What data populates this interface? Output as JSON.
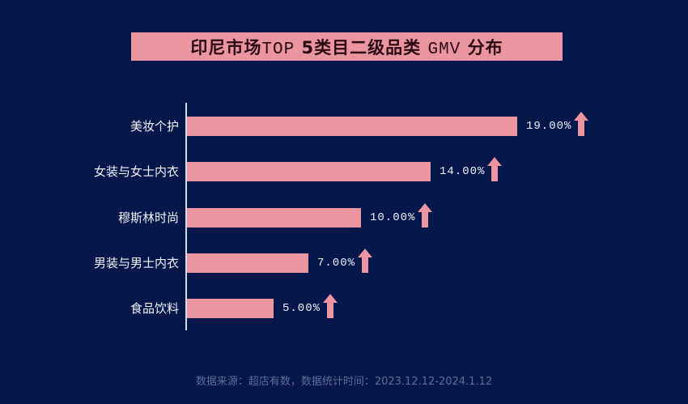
{
  "title": {
    "cn_prefix": "印尼市场",
    "mono_a": "TOP",
    "mid": "5类目二级品类",
    "mono_b": "GMV",
    "cn_suffix": "分布"
  },
  "footer": "数据来源：超店有数，数据统计时间：2023.12.12-2024.1.12",
  "colors": {
    "background": "#03164a",
    "bar": "#ec95a0",
    "title_bg": "#ea95a0",
    "label": "#f1f3f8",
    "footer": "#5d6d98"
  },
  "chart_data": {
    "type": "bar",
    "orientation": "horizontal",
    "title": "印尼市场TOP 5类目二级品类 GMV 分布",
    "categories": [
      "美妆个护",
      "女装与女士内衣",
      "穆斯林时尚",
      "男装与男士内衣",
      "食品饮料"
    ],
    "values": [
      19.0,
      14.0,
      10.0,
      7.0,
      5.0
    ],
    "value_labels": [
      "19.00%",
      "14.00%",
      "10.00%",
      "7.00%",
      "5.00%"
    ],
    "trend": [
      "up",
      "up",
      "up",
      "up",
      "up"
    ],
    "xlabel": "",
    "ylabel": "",
    "grid": false,
    "legend": null,
    "source_note": "数据来源：超店有数，数据统计时间：2023.12.12-2024.1.12"
  }
}
